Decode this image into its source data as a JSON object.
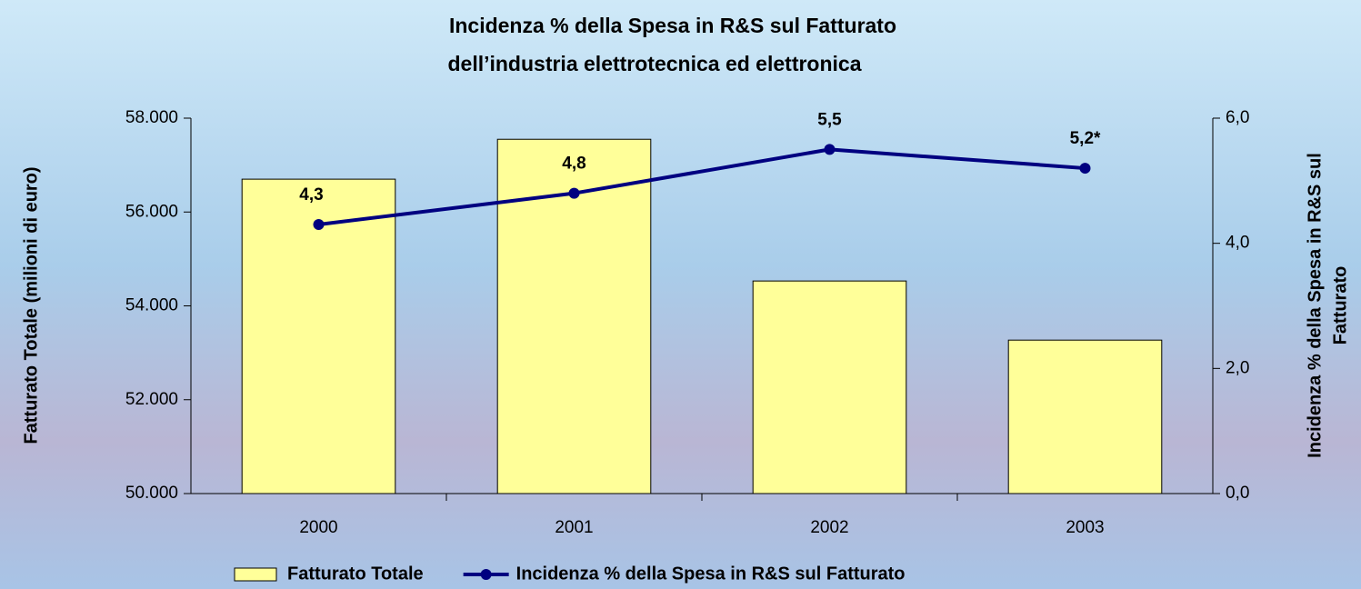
{
  "chart_data": {
    "type": "bar",
    "title": "Incidenza % della Spesa in R&S sul Fatturato",
    "subtitle": "dell’industria elettrotecnica ed elettronica",
    "ylabel": "Fatturato Totale (milioni di euro)",
    "y2label": [
      "Incidenza % della Spesa in R&S sul",
      "Fatturato"
    ],
    "categories": [
      "2000",
      "2001",
      "2002",
      "2003"
    ],
    "series": [
      {
        "name": "Fatturato Totale",
        "type": "bar",
        "color": "#ffff99",
        "values": [
          56700,
          57550,
          54530,
          53270
        ]
      },
      {
        "name": "Incidenza % della Spesa in R&S sul Fatturato",
        "type": "line",
        "axis": "y2",
        "color": "#000080",
        "values": [
          4.3,
          4.8,
          5.5,
          5.2
        ],
        "value_labels": [
          "4,3",
          "4,8",
          "5,5",
          "5,2*"
        ]
      }
    ],
    "ylim": [
      50000,
      58000
    ],
    "yticks": [
      {
        "value": 50000,
        "label": "50.000"
      },
      {
        "value": 52000,
        "label": "52.000"
      },
      {
        "value": 54000,
        "label": "54.000"
      },
      {
        "value": 56000,
        "label": "56.000"
      },
      {
        "value": 58000,
        "label": "58.000"
      }
    ],
    "y2lim": [
      0,
      6
    ],
    "y2ticks": [
      {
        "value": 0,
        "label": "0,0"
      },
      {
        "value": 2,
        "label": "2,0"
      },
      {
        "value": 4,
        "label": "4,0"
      },
      {
        "value": 6,
        "label": "6,0"
      }
    ],
    "legend": "bottom"
  }
}
